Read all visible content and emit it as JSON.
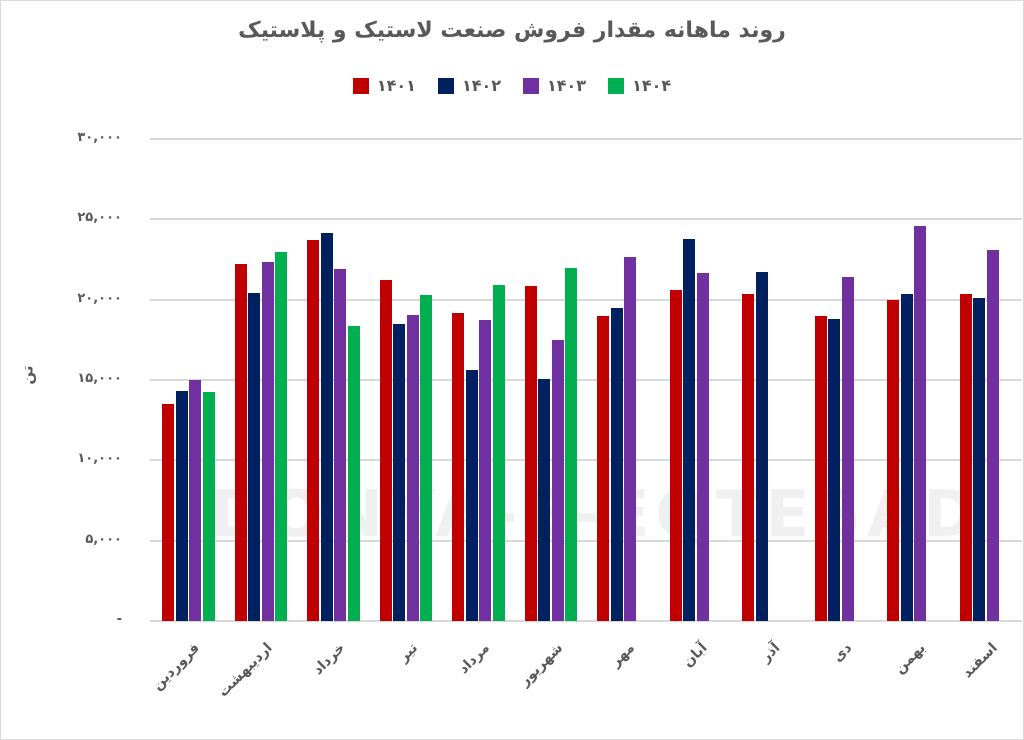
{
  "chart_data": {
    "type": "bar",
    "title": "روند ماهانه مقدار فروش صنعت لاستیک و پلاستیک",
    "xlabel": "",
    "ylabel": "تن",
    "ylim": [
      0,
      30000
    ],
    "yticks": [
      0,
      5000,
      10000,
      15000,
      20000,
      25000,
      30000
    ],
    "ytick_labels": [
      "-",
      "۵,۰۰۰",
      "۱۰,۰۰۰",
      "۱۵,۰۰۰",
      "۲۰,۰۰۰",
      "۲۵,۰۰۰",
      "۳۰,۰۰۰"
    ],
    "grid": true,
    "legend_position": "top",
    "categories": [
      "فروردین",
      "اردیبهشت",
      "خرداد",
      "تیر",
      "مرداد",
      "شهریور",
      "مهر",
      "آبان",
      "آذر",
      "دی",
      "بهمن",
      "اسفند"
    ],
    "series": [
      {
        "name": "۱۴۰۱",
        "color": "#c00000",
        "values": [
          13500,
          22250,
          23700,
          21200,
          19200,
          20870,
          18970,
          20600,
          20330,
          18970,
          19980,
          20330
        ]
      },
      {
        "name": "۱۴۰۲",
        "color": "#002060",
        "values": [
          14300,
          20400,
          24130,
          18500,
          15600,
          15090,
          19480,
          23770,
          21720,
          18800,
          20330,
          20120
        ]
      },
      {
        "name": "۱۴۰۳",
        "color": "#7030a0",
        "values": [
          15030,
          22360,
          21900,
          19070,
          18760,
          17520,
          22670,
          21680,
          null,
          21390,
          24600,
          23110
        ]
      },
      {
        "name": "۱۴۰۴",
        "color": "#00b050",
        "values": [
          14240,
          22940,
          18390,
          20290,
          20930,
          21990,
          null,
          null,
          null,
          null,
          null,
          null
        ]
      }
    ]
  },
  "watermark": "DONYA-E-EQTESAD"
}
